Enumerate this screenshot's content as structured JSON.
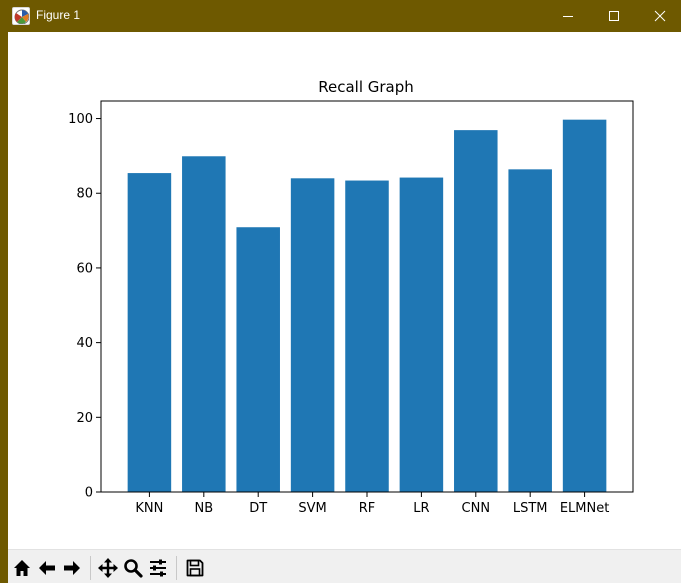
{
  "window": {
    "title": "Figure 1"
  },
  "toolbar": {
    "buttons": [
      {
        "name": "home-icon"
      },
      {
        "name": "back-arrow-icon"
      },
      {
        "name": "forward-arrow-icon"
      },
      {
        "name": "pan-icon"
      },
      {
        "name": "zoom-icon"
      },
      {
        "name": "configure-subplots-icon"
      },
      {
        "name": "save-icon"
      }
    ]
  },
  "chart_data": {
    "type": "bar",
    "title": "Recall Graph",
    "xlabel": "",
    "ylabel": "",
    "categories": [
      "KNN",
      "NB",
      "DT",
      "SVM",
      "RF",
      "LR",
      "CNN",
      "LSTM",
      "ELMNet"
    ],
    "values": [
      85.4,
      89.9,
      70.9,
      84.0,
      83.4,
      84.2,
      96.9,
      86.4,
      99.7
    ],
    "ylim": [
      0,
      104.7
    ],
    "yticks": [
      0,
      20,
      40,
      60,
      80,
      100
    ],
    "bar_color": "#1f77b4",
    "grid": false,
    "legend": "none"
  }
}
